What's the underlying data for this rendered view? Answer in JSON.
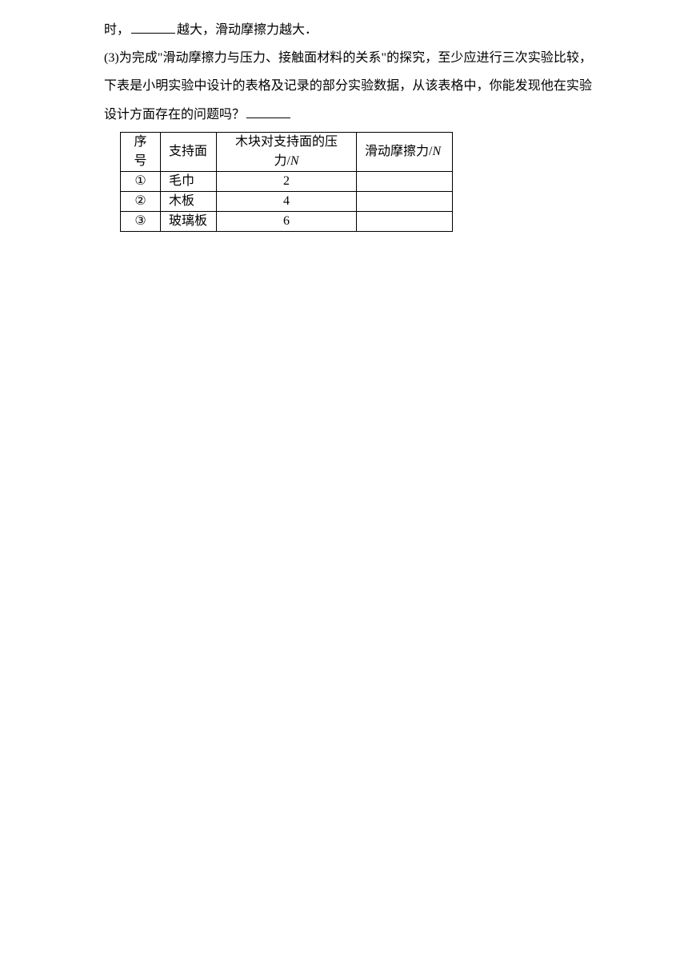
{
  "line1_a": "时，",
  "line1_b": "越大，滑动摩擦力越大．",
  "para3": "(3)为完成\"滑动摩擦力与压力、接触面材料的关系\"的探究，至少应进行三次实验比较，下表是小明实验中设计的表格及记录的部分实验数据，从该表格中，你能发现他在实验设计方面存在的问题吗？",
  "table": {
    "headers": {
      "c1": "序号",
      "c2": "支持面",
      "c3_a": "木块对支持面的压力/",
      "c3_b": "N",
      "c4_a": "滑动摩擦力/",
      "c4_b": "N"
    },
    "rows": [
      {
        "n": "①",
        "surface": "毛巾",
        "pressure": "2",
        "friction": ""
      },
      {
        "n": "②",
        "surface": "木板",
        "pressure": "4",
        "friction": ""
      },
      {
        "n": "③",
        "surface": "玻璃板",
        "pressure": "6",
        "friction": ""
      }
    ],
    "col_widths": {
      "c1": 50,
      "c2": 70,
      "c3": 175,
      "c4": 120
    },
    "border_color": "#000000",
    "background_color": "#ffffff"
  },
  "colors": {
    "text": "#000000",
    "background": "#ffffff"
  },
  "font_size": 16
}
